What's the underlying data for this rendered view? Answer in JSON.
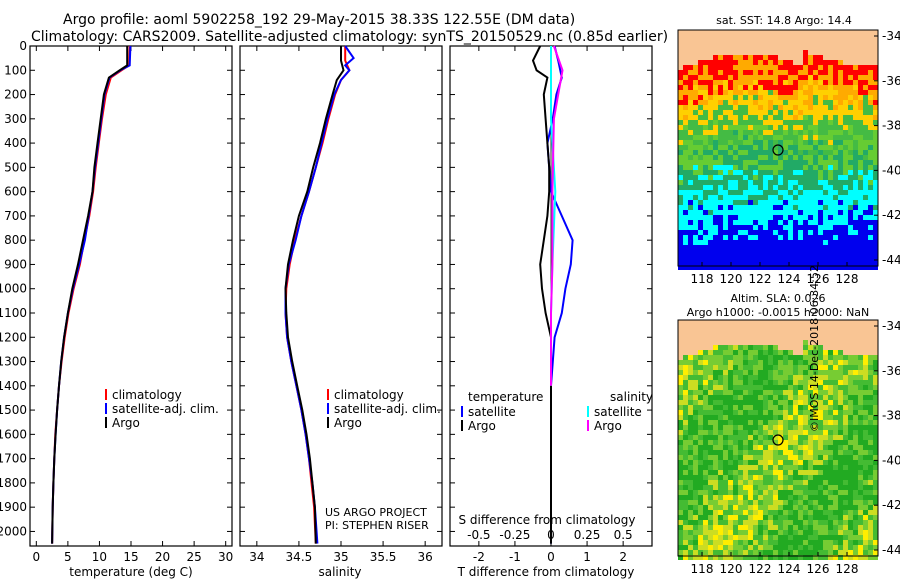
{
  "title_line1": "Argo profile: aoml 5902258_192 29-May-2015 38.33S 122.55E (DM data)",
  "title_line2": "Climatology: CARS2009. Satellite-adjusted climatology: synTS_20150529.nc (0.85d earlier)",
  "colors": {
    "climatology": "#ff0000",
    "satellite": "#0000ff",
    "argo": "#000000",
    "sal_satellite": "#00ffff",
    "sal_argo": "#ff00ff",
    "land": "#f9c594"
  },
  "credits": {
    "line1": "US ARGO PROJECT",
    "line2": "PI: STEPHEN RISER"
  },
  "imos_stamp": "©IMOS 14-Dec-2018 06:34:52",
  "map_top": {
    "title": "sat. SST: 14.8 Argo: 14.4",
    "yticks": [
      "-34",
      "-36",
      "-38",
      "-40",
      "-42",
      "-44"
    ],
    "xticks": [
      "118",
      "120",
      "122",
      "124",
      "126",
      "128"
    ]
  },
  "map_bottom": {
    "title1": "Altim. SLA: 0.026",
    "title2": "Argo h1000: -0.0015 h2000: NaN",
    "yticks": [
      "-34",
      "-36",
      "-38",
      "-40",
      "-42",
      "-44"
    ],
    "xticks": [
      "118",
      "120",
      "122",
      "124",
      "126",
      "128"
    ]
  },
  "chart_data": [
    {
      "type": "line",
      "name": "temperature-profile",
      "xlabel": "temperature (deg C)",
      "xlim": [
        -1,
        31
      ],
      "ylim": [
        2060,
        0
      ],
      "invert_y": true,
      "xticks": [
        0,
        5,
        10,
        15,
        20,
        25,
        30
      ],
      "yticks": [
        0,
        100,
        200,
        300,
        400,
        500,
        600,
        700,
        800,
        900,
        1000,
        1100,
        1200,
        1300,
        1400,
        1500,
        1600,
        1700,
        1800,
        1900,
        2000
      ],
      "legend": [
        "climatology",
        "satellite-adj. clim.",
        "Argo"
      ],
      "series": [
        {
          "name": "climatology",
          "color": "#ff0000",
          "points": [
            [
              14.8,
              0
            ],
            [
              14.7,
              80
            ],
            [
              13.5,
              100
            ],
            [
              11.8,
              130
            ],
            [
              11.0,
              200
            ],
            [
              10.4,
              300
            ],
            [
              9.9,
              400
            ],
            [
              9.4,
              500
            ],
            [
              9.0,
              600
            ],
            [
              8.4,
              700
            ],
            [
              7.6,
              800
            ],
            [
              6.9,
              900
            ],
            [
              5.9,
              1000
            ],
            [
              5.1,
              1100
            ],
            [
              4.5,
              1200
            ],
            [
              4.0,
              1300
            ],
            [
              3.6,
              1400
            ],
            [
              3.3,
              1500
            ],
            [
              3.0,
              1600
            ],
            [
              2.85,
              1700
            ],
            [
              2.7,
              1800
            ],
            [
              2.6,
              1900
            ],
            [
              2.5,
              2050
            ]
          ]
        },
        {
          "name": "satellite-adj. clim.",
          "color": "#0000ff",
          "points": [
            [
              14.9,
              0
            ],
            [
              14.8,
              80
            ],
            [
              13.3,
              100
            ],
            [
              11.6,
              130
            ],
            [
              10.8,
              200
            ],
            [
              10.3,
              300
            ],
            [
              9.8,
              400
            ],
            [
              9.3,
              500
            ],
            [
              8.9,
              600
            ],
            [
              8.3,
              700
            ],
            [
              7.7,
              800
            ],
            [
              6.8,
              900
            ],
            [
              5.8,
              1000
            ],
            [
              5.0,
              1100
            ],
            [
              4.4,
              1200
            ],
            [
              3.95,
              1300
            ],
            [
              3.6,
              1400
            ],
            [
              3.3,
              1500
            ],
            [
              3.05,
              1600
            ],
            [
              2.85,
              1700
            ],
            [
              2.7,
              1800
            ],
            [
              2.6,
              1900
            ],
            [
              2.5,
              2050
            ]
          ]
        },
        {
          "name": "Argo",
          "color": "#000000",
          "points": [
            [
              14.4,
              0
            ],
            [
              14.4,
              80
            ],
            [
              13.2,
              100
            ],
            [
              11.5,
              130
            ],
            [
              10.7,
              200
            ],
            [
              10.2,
              300
            ],
            [
              9.7,
              400
            ],
            [
              9.2,
              500
            ],
            [
              8.9,
              600
            ],
            [
              8.2,
              700
            ],
            [
              7.4,
              800
            ],
            [
              6.6,
              900
            ],
            [
              5.7,
              1000
            ],
            [
              5.0,
              1100
            ],
            [
              4.4,
              1200
            ],
            [
              3.95,
              1300
            ],
            [
              3.6,
              1400
            ],
            [
              3.3,
              1500
            ],
            [
              3.05,
              1600
            ],
            [
              2.85,
              1700
            ],
            [
              2.7,
              1800
            ],
            [
              2.6,
              1900
            ],
            [
              2.5,
              2050
            ]
          ]
        }
      ]
    },
    {
      "type": "line",
      "name": "salinity-profile",
      "xlabel": "salinity",
      "xlim": [
        33.8,
        36.2
      ],
      "ylim": [
        2060,
        0
      ],
      "invert_y": true,
      "xticks": [
        34,
        34.5,
        35,
        35.5,
        36
      ],
      "legend": [
        "climatology",
        "satellite-adj. clim.",
        "Argo"
      ],
      "series": [
        {
          "name": "climatology",
          "color": "#ff0000",
          "points": [
            [
              35.05,
              0
            ],
            [
              35.05,
              60
            ],
            [
              35.1,
              100
            ],
            [
              35.0,
              140
            ],
            [
              34.93,
              200
            ],
            [
              34.85,
              300
            ],
            [
              34.78,
              400
            ],
            [
              34.7,
              500
            ],
            [
              34.62,
              600
            ],
            [
              34.53,
              700
            ],
            [
              34.45,
              800
            ],
            [
              34.39,
              900
            ],
            [
              34.35,
              1000
            ],
            [
              34.34,
              1100
            ],
            [
              34.36,
              1200
            ],
            [
              34.41,
              1300
            ],
            [
              34.47,
              1400
            ],
            [
              34.53,
              1500
            ],
            [
              34.58,
              1600
            ],
            [
              34.62,
              1700
            ],
            [
              34.65,
              1800
            ],
            [
              34.68,
              1900
            ],
            [
              34.7,
              2050
            ]
          ]
        },
        {
          "name": "satellite-adj. clim.",
          "color": "#0000ff",
          "points": [
            [
              35.05,
              0
            ],
            [
              35.15,
              50
            ],
            [
              35.05,
              80
            ],
            [
              35.1,
              100
            ],
            [
              35.0,
              140
            ],
            [
              34.92,
              200
            ],
            [
              34.84,
              300
            ],
            [
              34.77,
              400
            ],
            [
              34.7,
              500
            ],
            [
              34.62,
              600
            ],
            [
              34.53,
              700
            ],
            [
              34.46,
              800
            ],
            [
              34.38,
              900
            ],
            [
              34.34,
              1000
            ],
            [
              34.34,
              1100
            ],
            [
              34.36,
              1200
            ],
            [
              34.41,
              1300
            ],
            [
              34.47,
              1400
            ],
            [
              34.53,
              1500
            ],
            [
              34.58,
              1600
            ],
            [
              34.62,
              1700
            ],
            [
              34.66,
              1800
            ],
            [
              34.69,
              1900
            ],
            [
              34.72,
              2050
            ]
          ]
        },
        {
          "name": "Argo",
          "color": "#000000",
          "points": [
            [
              35.0,
              0
            ],
            [
              35.0,
              60
            ],
            [
              35.03,
              100
            ],
            [
              34.95,
              140
            ],
            [
              34.9,
              200
            ],
            [
              34.82,
              300
            ],
            [
              34.75,
              400
            ],
            [
              34.67,
              500
            ],
            [
              34.6,
              600
            ],
            [
              34.5,
              700
            ],
            [
              34.43,
              800
            ],
            [
              34.37,
              900
            ],
            [
              34.34,
              1000
            ],
            [
              34.35,
              1100
            ],
            [
              34.37,
              1200
            ],
            [
              34.42,
              1300
            ],
            [
              34.48,
              1400
            ],
            [
              34.54,
              1500
            ],
            [
              34.59,
              1600
            ],
            [
              34.63,
              1700
            ],
            [
              34.66,
              1800
            ],
            [
              34.69,
              1900
            ],
            [
              34.7,
              2050
            ]
          ]
        }
      ]
    },
    {
      "type": "line",
      "name": "difference-profile",
      "xlabel": "T difference from climatology",
      "xlabel_s": "S difference from climatology",
      "xlim": [
        -2.8,
        2.8
      ],
      "ylim": [
        2060,
        0
      ],
      "invert_y": true,
      "xticks": [
        "-2",
        "-1",
        "0",
        "1",
        "2"
      ],
      "s_ticks": [
        "-0.5",
        "-0.25",
        "0",
        "0.25",
        "0.5"
      ],
      "legend_left_title": "temperature",
      "legend_right_title": "salinity",
      "legend_left": [
        "satellite",
        "Argo"
      ],
      "legend_right": [
        "satellite",
        "Argo"
      ],
      "series": [
        {
          "name": "T satellite",
          "color": "#0000ff",
          "points": [
            [
              0.1,
              0
            ],
            [
              0.2,
              60
            ],
            [
              0.3,
              130
            ],
            [
              0.15,
              200
            ],
            [
              0.05,
              300
            ],
            [
              -0.1,
              400
            ],
            [
              -0.05,
              500
            ],
            [
              0,
              600
            ],
            [
              0.3,
              700
            ],
            [
              0.6,
              800
            ],
            [
              0.55,
              900
            ],
            [
              0.4,
              1000
            ],
            [
              0.3,
              1100
            ],
            [
              0.1,
              1200
            ],
            [
              0.05,
              1300
            ],
            [
              0,
              1400
            ],
            [
              0,
              2050
            ]
          ]
        },
        {
          "name": "T Argo",
          "color": "#000000",
          "points": [
            [
              -0.3,
              0
            ],
            [
              -0.5,
              60
            ],
            [
              -0.4,
              100
            ],
            [
              -0.1,
              130
            ],
            [
              -0.2,
              200
            ],
            [
              -0.15,
              300
            ],
            [
              -0.1,
              400
            ],
            [
              -0.05,
              500
            ],
            [
              -0.05,
              600
            ],
            [
              -0.1,
              700
            ],
            [
              -0.2,
              800
            ],
            [
              -0.3,
              900
            ],
            [
              -0.25,
              1000
            ],
            [
              -0.15,
              1100
            ],
            [
              0,
              1200
            ],
            [
              0,
              1400
            ],
            [
              0,
              1650
            ],
            [
              0,
              2050
            ]
          ]
        },
        {
          "name": "S satellite",
          "color": "#00ffff",
          "points": [
            [
              0,
              0
            ],
            [
              0,
              300
            ],
            [
              0.03,
              600
            ],
            [
              0.01,
              900
            ],
            [
              0,
              1100
            ],
            [
              0,
              1400
            ]
          ]
        },
        {
          "name": "S Argo",
          "color": "#ff00ff",
          "points": [
            [
              0.02,
              0
            ],
            [
              0.08,
              100
            ],
            [
              0.05,
              200
            ],
            [
              0.02,
              300
            ],
            [
              0.01,
              600
            ],
            [
              0.01,
              900
            ],
            [
              0,
              1100
            ],
            [
              0,
              1400
            ]
          ]
        }
      ]
    }
  ]
}
